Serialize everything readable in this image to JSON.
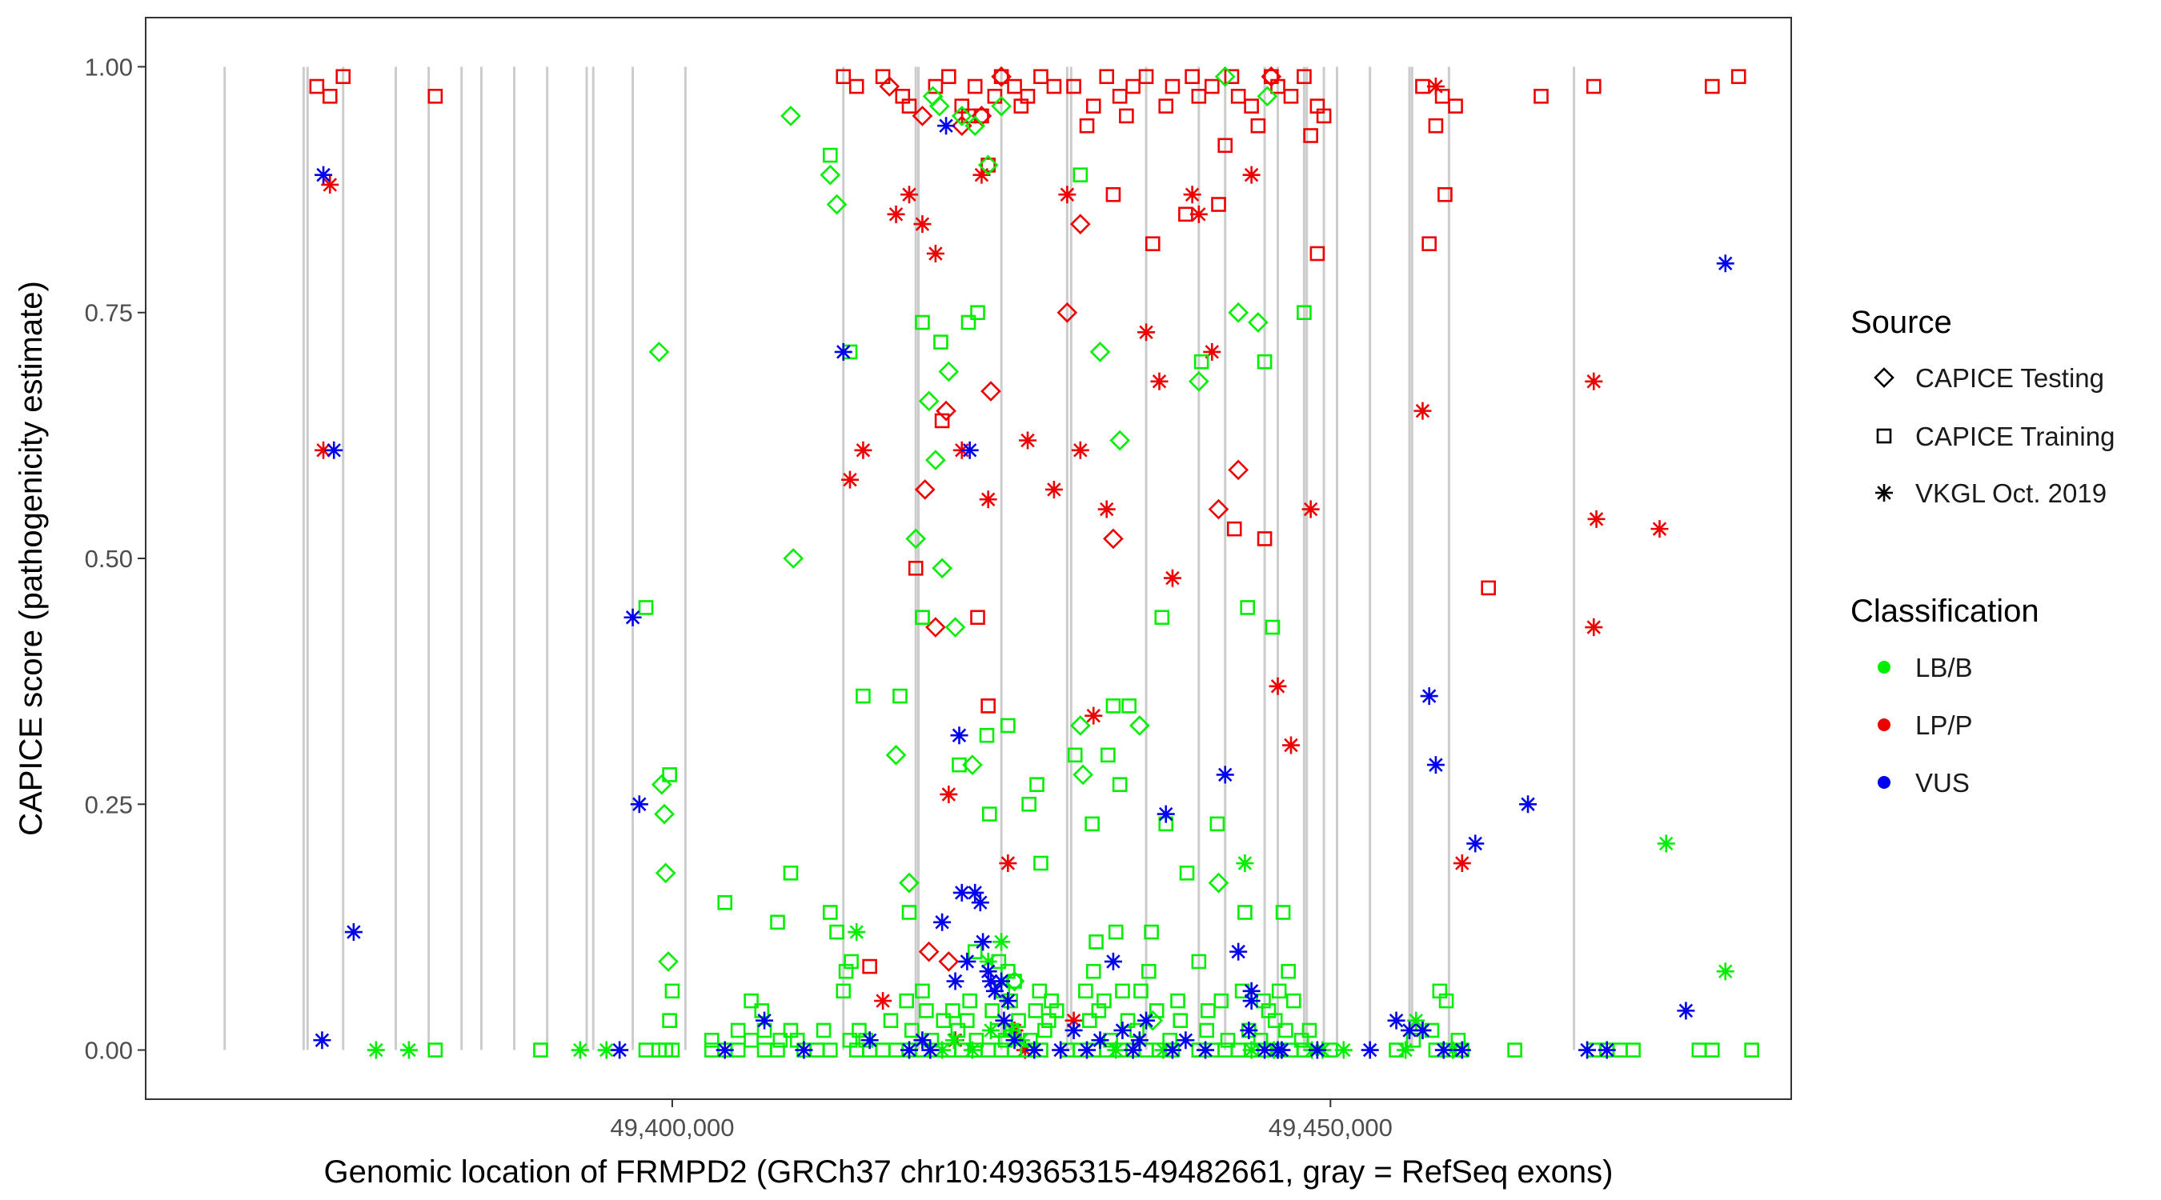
{
  "chart_data": {
    "type": "scatter",
    "xlabel": "Genomic location of FRMPD2 (GRCh37 chr10:49365315-49482661, gray = RefSeq exons)",
    "ylabel": "CAPICE score (pathogenicity estimate)",
    "xlim": [
      49360000,
      49485000
    ],
    "ylim": [
      -0.05,
      1.05
    ],
    "x_ticks": [
      49400000,
      49450000
    ],
    "x_tick_labels": [
      "49,400,000",
      "49,450,000"
    ],
    "y_ticks": [
      0.0,
      0.25,
      0.5,
      0.75,
      1.0
    ],
    "y_tick_labels": [
      "0.00",
      "0.25",
      "0.50",
      "0.75",
      "1.00"
    ],
    "grid": false,
    "exons": [
      49366000,
      49372000,
      49372300,
      49375000,
      49379000,
      49381500,
      49384000,
      49385500,
      49388000,
      49390500,
      49393500,
      49394000,
      49397000,
      49401000,
      49413000,
      49418500,
      49418700,
      49425000,
      49430000,
      49430300,
      49436000,
      49440000,
      49442000,
      49445000,
      49446000,
      49448000,
      49448200,
      49449500,
      49450500,
      49453000,
      49456000,
      49456200,
      49459000,
      49468500
    ],
    "colors": {
      "LB/B": "#00ee00",
      "LP/P": "#ee0000",
      "VUS": "#0000ee",
      "exon": "#cccccc"
    },
    "legend": {
      "position": "right",
      "shape_title": "Source",
      "shape_entries": [
        {
          "label": "CAPICE Testing",
          "shape": "diamond"
        },
        {
          "label": "CAPICE Training",
          "shape": "square"
        },
        {
          "label": "VKGL Oct. 2019",
          "shape": "asterisk"
        }
      ],
      "color_title": "Classification",
      "color_entries": [
        {
          "label": "LB/B",
          "color": "#00ee00"
        },
        {
          "label": "LP/P",
          "color": "#ee0000"
        },
        {
          "label": "VUS",
          "color": "#0000ee"
        }
      ]
    },
    "series": [
      {
        "source": "CAPICE Training",
        "classification": "LP/P",
        "x": [
          49373000,
          49374000,
          49375000,
          49382000,
          49413000,
          49414000,
          49416000,
          49417500,
          49418000,
          49420000,
          49421000,
          49422000,
          49423000,
          49423500,
          49424500,
          49425000,
          49426000,
          49426500,
          49427000,
          49428000,
          49430500,
          49432000,
          49433000,
          49434000,
          49435000,
          49436000,
          49437500,
          49438000,
          49439500,
          49440000,
          49441000,
          49442500,
          49443000,
          49444000,
          49445500,
          49446000,
          49447000,
          49448000,
          49449000,
          49429000,
          49431500,
          49434500,
          49442000,
          49444500,
          49448500,
          49449500,
          49457000,
          49458000,
          49458500,
          49459500,
          49466000,
          49470000,
          49479000,
          49481000,
          49422500,
          49424000,
          49433500,
          49436500,
          49441500,
          49449000,
          49458700,
          49439000,
          49445000,
          49420500,
          49442700,
          49457500,
          49462000,
          49418500,
          49415000,
          49424000,
          49423200
        ],
        "y": [
          0.98,
          0.97,
          0.99,
          0.97,
          0.99,
          0.98,
          0.99,
          0.97,
          0.96,
          0.98,
          0.99,
          0.96,
          0.98,
          0.95,
          0.97,
          0.99,
          0.98,
          0.96,
          0.97,
          0.99,
          0.98,
          0.96,
          0.99,
          0.97,
          0.98,
          0.99,
          0.96,
          0.98,
          0.99,
          0.97,
          0.98,
          0.99,
          0.97,
          0.96,
          0.99,
          0.98,
          0.97,
          0.99,
          0.96,
          0.98,
          0.94,
          0.95,
          0.92,
          0.94,
          0.93,
          0.95,
          0.98,
          0.94,
          0.97,
          0.96,
          0.97,
          0.98,
          0.98,
          0.99,
          0.95,
          0.9,
          0.87,
          0.82,
          0.86,
          0.81,
          0.87,
          0.85,
          0.52,
          0.64,
          0.53,
          0.82,
          0.47,
          0.49,
          0.085,
          0.35,
          0.44
        ],
        "shape": "square"
      },
      {
        "source": "CAPICE Testing",
        "classification": "LP/P",
        "x": [
          49416500,
          49419000,
          49422000,
          49423500,
          49425000,
          49430000,
          49431000,
          49433500,
          49441500,
          49443000,
          49445500,
          49419200,
          49420800,
          49424200,
          49420000,
          49421000,
          49419500
        ],
        "y": [
          0.98,
          0.95,
          0.94,
          0.95,
          0.99,
          0.75,
          0.84,
          0.52,
          0.55,
          0.59,
          0.99,
          0.57,
          0.65,
          0.67,
          0.43,
          0.09,
          0.1
        ],
        "shape": "diamond"
      },
      {
        "source": "VKGL Oct. 2019",
        "classification": "LP/P",
        "x": [
          49374000,
          49373500,
          49417000,
          49418000,
          49419000,
          49420000,
          49421000,
          49422000,
          49423500,
          49424000,
          49425500,
          49427000,
          49429000,
          49430000,
          49431000,
          49432000,
          49436000,
          49437000,
          49438000,
          49440000,
          49441000,
          49444000,
          49446000,
          49447000,
          49448500,
          49457000,
          49458000,
          49460000,
          49470000,
          49470200,
          49470000,
          49475000,
          49413500,
          49414500,
          49421500,
          49426800,
          49433000,
          49439500,
          49426000,
          49430500,
          49416000
        ],
        "y": [
          0.88,
          0.61,
          0.85,
          0.87,
          0.84,
          0.81,
          0.26,
          0.61,
          0.89,
          0.56,
          0.19,
          0.62,
          0.57,
          0.87,
          0.61,
          0.34,
          0.73,
          0.68,
          0.48,
          0.85,
          0.71,
          0.89,
          0.37,
          0.31,
          0.55,
          0.65,
          0.98,
          0.19,
          0.68,
          0.54,
          0.43,
          0.53,
          0.58,
          0.61,
          0.01,
          0.0,
          0.55,
          0.87,
          0.02,
          0.03,
          0.05
        ],
        "shape": "asterisk"
      },
      {
        "source": "CAPICE Training",
        "classification": "LB/B",
        "x": [
          49382000,
          49390000,
          49398000,
          49399000,
          49399500,
          49400000,
          49403000,
          49404000,
          49405000,
          49407000,
          49408000,
          49410000,
          49411000,
          49412000,
          49414000,
          49415000,
          49416000,
          49417000,
          49418000,
          49419000,
          49420000,
          49421000,
          49422000,
          49423000,
          49424000,
          49425000,
          49426000,
          49427000,
          49428000,
          49430000,
          49431000,
          49432000,
          49433000,
          49434000,
          49435000,
          49436000,
          49437000,
          49438000,
          49440000,
          49441000,
          49442000,
          49443000,
          49444000,
          49445000,
          49446000,
          49447000,
          49448000,
          49450000,
          49455000,
          49458000,
          49459000,
          49460000,
          49464000,
          49470000,
          49471000,
          49472000,
          49473000,
          49478000,
          49479000,
          49482000,
          49403000,
          49405000,
          49406000,
          49407000,
          49408200,
          49409000,
          49409500,
          49411500,
          49413500,
          49414200,
          49414700,
          49418200,
          49419700,
          49421700,
          49423100,
          49424700,
          49425300,
          49425800,
          49427200,
          49428300,
          49433300,
          49435300,
          49437800,
          49440600,
          49442200,
          49443800,
          49444700,
          49446600,
          49447800,
          49448400,
          49456300,
          49457700,
          49459700,
          49399800,
          49406800,
          49416600,
          49419300,
          49420600,
          49421300,
          49422400,
          49424300,
          49426300,
          49427600,
          49428600,
          49429200,
          49431700,
          49432400,
          49434600,
          49436800,
          49438600,
          49445300,
          49445800,
          49400000,
          49406000,
          49413000,
          49417800,
          49419000,
          49422600,
          49425100,
          49425700,
          49427900,
          49428800,
          49431400,
          49432800,
          49434200,
          49441700,
          49443300,
          49444900,
          49446100,
          49447200,
          49458300,
          49458800,
          49413200,
          49413600,
          49423000,
          49432200,
          49433700,
          49436200,
          49426000,
          49418000,
          49412000,
          49435600,
          49438400,
          49440700,
          49446800,
          49446400,
          49421800,
          49423900,
          49427100,
          49433100,
          49419000,
          49427700,
          49424100,
          49441400,
          49434700,
          49417300,
          49443700,
          49423200,
          49420400,
          49440200,
          49437200,
          49428000,
          49430600,
          49431900,
          49425500,
          49439100,
          49436400,
          49432000,
          49445600
        ],
        "y": [
          0.0,
          0.0,
          0.0,
          0.0,
          0.0,
          0.0,
          0.0,
          0.0,
          0.0,
          0.0,
          0.0,
          0.0,
          0.0,
          0.0,
          0.0,
          0.0,
          0.0,
          0.0,
          0.0,
          0.0,
          0.0,
          0.0,
          0.0,
          0.0,
          0.0,
          0.0,
          0.0,
          0.0,
          0.0,
          0.0,
          0.0,
          0.0,
          0.0,
          0.0,
          0.0,
          0.0,
          0.0,
          0.0,
          0.0,
          0.0,
          0.0,
          0.0,
          0.0,
          0.0,
          0.0,
          0.0,
          0.0,
          0.0,
          0.0,
          0.0,
          0.0,
          0.0,
          0.0,
          0.0,
          0.0,
          0.0,
          0.0,
          0.0,
          0.0,
          0.0,
          0.01,
          0.02,
          0.01,
          0.02,
          0.01,
          0.02,
          0.01,
          0.02,
          0.01,
          0.02,
          0.01,
          0.02,
          0.01,
          0.02,
          0.01,
          0.02,
          0.01,
          0.02,
          0.01,
          0.02,
          0.01,
          0.02,
          0.01,
          0.02,
          0.01,
          0.02,
          0.01,
          0.02,
          0.01,
          0.02,
          0.01,
          0.02,
          0.01,
          0.03,
          0.04,
          0.03,
          0.04,
          0.03,
          0.04,
          0.03,
          0.04,
          0.03,
          0.04,
          0.03,
          0.04,
          0.03,
          0.04,
          0.03,
          0.04,
          0.03,
          0.04,
          0.03,
          0.06,
          0.05,
          0.06,
          0.05,
          0.06,
          0.05,
          0.06,
          0.05,
          0.06,
          0.05,
          0.06,
          0.05,
          0.06,
          0.05,
          0.06,
          0.05,
          0.06,
          0.05,
          0.06,
          0.05,
          0.08,
          0.09,
          0.1,
          0.11,
          0.12,
          0.08,
          0.07,
          0.14,
          0.14,
          0.06,
          0.05,
          0.04,
          0.08,
          0.14,
          0.29,
          0.32,
          0.25,
          0.3,
          0.44,
          0.27,
          0.24,
          0.23,
          0.35,
          0.36,
          0.45,
          0.75,
          0.72,
          0.7,
          0.44,
          0.19,
          0.3,
          0.23,
          0.33,
          0.18,
          0.12,
          0.08,
          0.43
        ],
        "shape": "square"
      },
      {
        "source": "CAPICE Training",
        "classification": "LB/B",
        "x": [
          49399800,
          49404000,
          49409000,
          49412000,
          49412500,
          49413500,
          49414500,
          49419000,
          49422500,
          49424800,
          49425500,
          49440000,
          49443500,
          49445000,
          49448000,
          49398000,
          49408000,
          49419000,
          49431000,
          49433500,
          49434000,
          49437500
        ],
        "y": [
          0.28,
          0.15,
          0.18,
          0.91,
          0.12,
          0.71,
          0.36,
          0.74,
          0.74,
          0.09,
          0.08,
          0.09,
          0.14,
          0.7,
          0.75,
          0.45,
          0.13,
          0.44,
          0.89,
          0.35,
          0.27,
          0.23
        ],
        "shape": "square"
      },
      {
        "source": "CAPICE Testing",
        "classification": "LB/B",
        "x": [
          49409000,
          49412000,
          49412500,
          49399000,
          49399200,
          49399400,
          49399500,
          49399700,
          49409200,
          49420000,
          49421000,
          49422000,
          49423000,
          49424000,
          49425000,
          49426000,
          49418500,
          49419500,
          49420500,
          49421500,
          49422800,
          49417000,
          49418000,
          49431000,
          49432500,
          49434000,
          49435500,
          49436500,
          49440000,
          49441500,
          49443000,
          49444500,
          49445200,
          49442000,
          49431200,
          49419800,
          49420300
        ],
        "y": [
          0.95,
          0.89,
          0.86,
          0.71,
          0.27,
          0.24,
          0.18,
          0.09,
          0.5,
          0.6,
          0.69,
          0.95,
          0.94,
          0.9,
          0.96,
          0.07,
          0.52,
          0.66,
          0.49,
          0.43,
          0.29,
          0.3,
          0.17,
          0.33,
          0.71,
          0.62,
          0.33,
          0.03,
          0.68,
          0.17,
          0.75,
          0.74,
          0.97,
          0.99,
          0.28,
          0.97,
          0.96
        ],
        "shape": "diamond"
      },
      {
        "source": "VKGL Oct. 2019",
        "classification": "LB/B",
        "x": [
          49377500,
          49380000,
          49393000,
          49395000,
          49414000,
          49424000,
          49425000,
          49425800,
          49426500,
          49443500,
          49444000,
          49451000,
          49456500,
          49457000,
          49475500,
          49480000,
          49418000,
          49420500,
          49422800,
          49427500,
          49433700,
          49437300,
          49445700,
          49448600,
          49449400,
          49455700,
          49459300,
          49421400,
          49424200
        ],
        "y": [
          0.0,
          0.0,
          0.0,
          0.0,
          0.12,
          0.09,
          0.11,
          0.02,
          0.01,
          0.19,
          0.0,
          0.0,
          0.03,
          0.02,
          0.21,
          0.08,
          0.0,
          0.0,
          0.0,
          0.0,
          0.0,
          0.0,
          0.0,
          0.0,
          0.0,
          0.0,
          0.0,
          0.01,
          0.02
        ],
        "shape": "asterisk"
      },
      {
        "source": "VKGL Oct. 2019",
        "classification": "VUS",
        "x": [
          49373500,
          49374300,
          49375800,
          49373400,
          49397000,
          49397500,
          49396000,
          49404000,
          49407000,
          49410000,
          49413000,
          49415000,
          49418000,
          49419000,
          49420500,
          49421500,
          49422000,
          49423000,
          49424000,
          49424500,
          49425000,
          49425500,
          49421800,
          49422600,
          49423400,
          49424200,
          49426000,
          49430500,
          49431500,
          49432500,
          49433500,
          49434200,
          49435000,
          49436000,
          49437500,
          49439000,
          49440500,
          49442000,
          49443000,
          49444000,
          49445000,
          49446000,
          49453000,
          49455000,
          49456000,
          49457500,
          49458000,
          49460000,
          49461000,
          49465000,
          49469500,
          49471000,
          49477000,
          49480000,
          49444000,
          49443800,
          49449000,
          49457000,
          49458600,
          49446300,
          49422400,
          49423600,
          49420800,
          49425200,
          49419600,
          49438000,
          49435500,
          49427500,
          49429500
        ],
        "y": [
          0.89,
          0.61,
          0.12,
          0.01,
          0.44,
          0.25,
          0.0,
          0.0,
          0.03,
          0.0,
          0.71,
          0.01,
          0.0,
          0.01,
          0.13,
          0.07,
          0.16,
          0.16,
          0.08,
          0.06,
          0.07,
          0.05,
          0.32,
          0.61,
          0.15,
          0.07,
          0.01,
          0.02,
          0.0,
          0.01,
          0.09,
          0.02,
          0.0,
          0.03,
          0.24,
          0.01,
          0.0,
          0.28,
          0.1,
          0.05,
          0.0,
          0.0,
          0.0,
          0.03,
          0.02,
          0.36,
          0.29,
          0.0,
          0.21,
          0.25,
          0.0,
          0.0,
          0.04,
          0.8,
          0.06,
          0.02,
          0.0,
          0.02,
          0.0,
          0.0,
          0.09,
          0.11,
          0.94,
          0.03,
          0.0,
          0.0,
          0.01,
          0.0,
          0.0
        ],
        "shape": "asterisk"
      }
    ]
  }
}
